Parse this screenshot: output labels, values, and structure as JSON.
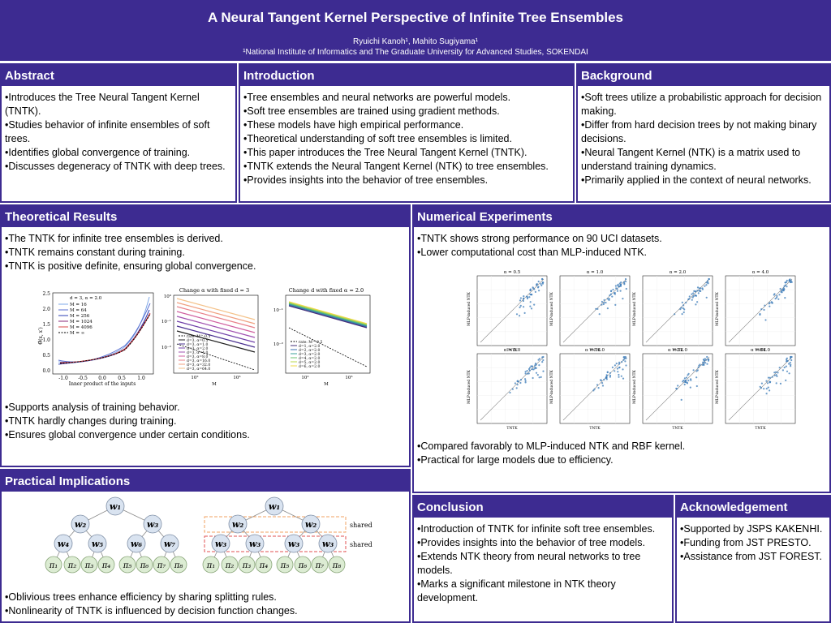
{
  "header": {
    "title": "A Neural Tangent Kernel Perspective of Infinite Tree Ensembles",
    "authors": "Ryuichi Kanoh¹, Mahito Sugiyama¹",
    "affiliation": "¹National Institute of Informatics and The Graduate University for Advanced Studies, SOKENDAI"
  },
  "abstract": {
    "title": "Abstract",
    "bullets": [
      "Introduces the Tree Neural Tangent Kernel (TNTK).",
      "Studies behavior of infinite ensembles of soft trees.",
      "Identifies global convergence of training.",
      "Discusses degeneracy of TNTK with deep trees."
    ]
  },
  "introduction": {
    "title": "Introduction",
    "bullets": [
      "Tree ensembles and neural networks are powerful models.",
      "Soft tree ensembles are trained using gradient methods.",
      "These models have high empirical performance.",
      "Theoretical understanding of soft tree ensembles is limited.",
      "This paper introduces the Tree Neural Tangent Kernel (TNTK).",
      "TNTK extends the Neural Tangent Kernel (NTK) to tree ensembles.",
      "Provides insights into the behavior of tree ensembles."
    ]
  },
  "background": {
    "title": "Background",
    "bullets": [
      "Soft trees utilize a probabilistic approach for decision making.",
      "Differ from hard decision trees by not making binary decisions.",
      "Neural Tangent Kernel (NTK) is a matrix used to understand training dynamics.",
      "Primarily applied in the context of neural networks."
    ]
  },
  "theory": {
    "title": "Theoretical Results",
    "bullets_top": [
      "The TNTK for infinite tree ensembles is derived.",
      "TNTK remains constant during training.",
      "TNTK is positive definite, ensuring global convergence."
    ],
    "bullets_bottom": [
      "Supports analysis of training behavior.",
      "TNTK hardly changes during training.",
      "Ensures global convergence under certain conditions."
    ],
    "fig1": {
      "legend_title": "d = 3, α = 2.0",
      "legend": [
        "M = 16",
        "M = 64",
        "M = 256",
        "M = 1024",
        "M = 4096",
        "M = ∞"
      ],
      "yticks": [
        "2.5",
        "2.0",
        "1.5",
        "1.0",
        "0.5",
        "0.0"
      ],
      "xticks": [
        "-1.0",
        "-0.5",
        "0.0",
        "0.5",
        "1.0"
      ],
      "xlabel": "Inner product of the inputs",
      "ylabel": "Θ̂(x, x′)"
    },
    "fig2": {
      "title": "Change α with fixed d = 3",
      "legend": [
        "rate: M^-0.5",
        "d=3, α=0.5",
        "d=3, α=1.0",
        "d=3, α=2.0",
        "d=3, α=4.0",
        "d=3, α=8.0",
        "d=3, α=16.0",
        "d=3, α=32.0",
        "d=3, α=64.0"
      ],
      "xlabel": "M",
      "yticks": [
        "10⁰",
        "10⁻¹",
        "10⁻²"
      ],
      "xticks": [
        "10²",
        "10³"
      ]
    },
    "fig3": {
      "title": "Change d with fixed α = 2.0",
      "legend": [
        "rate: M^-0.5",
        "d=1, α=2.0",
        "d=2, α=2.0",
        "d=3, α=2.0",
        "d=4, α=2.0",
        "d=5, α=2.0",
        "d=6, α=2.0"
      ],
      "xlabel": "M",
      "yticks": [
        "10⁻¹",
        "10⁻²"
      ],
      "xticks": [
        "10²",
        "10³"
      ]
    }
  },
  "experiments": {
    "title": "Numerical Experiments",
    "bullets_top": [
      "TNTK shows strong performance on 90 UCI datasets.",
      "Lower computational cost than MLP-induced NTK."
    ],
    "bullets_bottom": [
      "Compared favorably to MLP-induced NTK and RBF kernel.",
      "Practical for large models due to efficiency."
    ],
    "plot_titles": [
      "α = 0.5",
      "α = 1.0",
      "α = 2.0",
      "α = 4.0",
      "α = 8.0",
      "α = 16.0",
      "α = 32.0",
      "α = 64.0"
    ],
    "xlabel": "TNTK",
    "ylabel": "MLP-induced NTK",
    "ticks": [
      "0",
      "20",
      "40",
      "60",
      "80",
      "100"
    ]
  },
  "practical": {
    "title": "Practical Implications",
    "bullets": [
      "Oblivious trees enhance efficiency by sharing splitting rules.",
      "Nonlinearity of TNTK is influenced by decision function changes."
    ],
    "tree_left": {
      "root": "w₁",
      "level2": [
        "w₂",
        "w₃"
      ],
      "level3": [
        "w₄",
        "w₅",
        "w₆",
        "w₇"
      ],
      "leaves": [
        "π₁",
        "π₂",
        "π₃",
        "π₄",
        "π₅",
        "π₆",
        "π₇",
        "π₈"
      ]
    },
    "tree_right": {
      "root": "w₁",
      "level2": [
        "w₂",
        "w₂"
      ],
      "level3": [
        "w₃",
        "w₃",
        "w₃",
        "w₃"
      ],
      "leaves": [
        "π₁",
        "π₂",
        "π₃",
        "π₄",
        "π₅",
        "π₆",
        "π₇",
        "π₈"
      ],
      "shared_labels": [
        "shared",
        "shared"
      ]
    }
  },
  "conclusion": {
    "title": "Conclusion",
    "bullets": [
      "Introduction of TNTK for infinite soft tree ensembles.",
      "Provides insights into the behavior of tree models.",
      "Extends NTK theory from neural networks to tree models.",
      "Marks a significant milestone in NTK theory development."
    ]
  },
  "acknowledgement": {
    "title": "Acknowledgement",
    "bullets": [
      "Supported by JSPS KAKENHI.",
      "Funding from JST PRESTO.",
      "Assistance from JST FOREST."
    ]
  },
  "colors": {
    "header": "#3d2b91",
    "node_blue": "#d9e3f0",
    "node_green": "#dcecd3",
    "scatter": "#3b7bb8"
  }
}
